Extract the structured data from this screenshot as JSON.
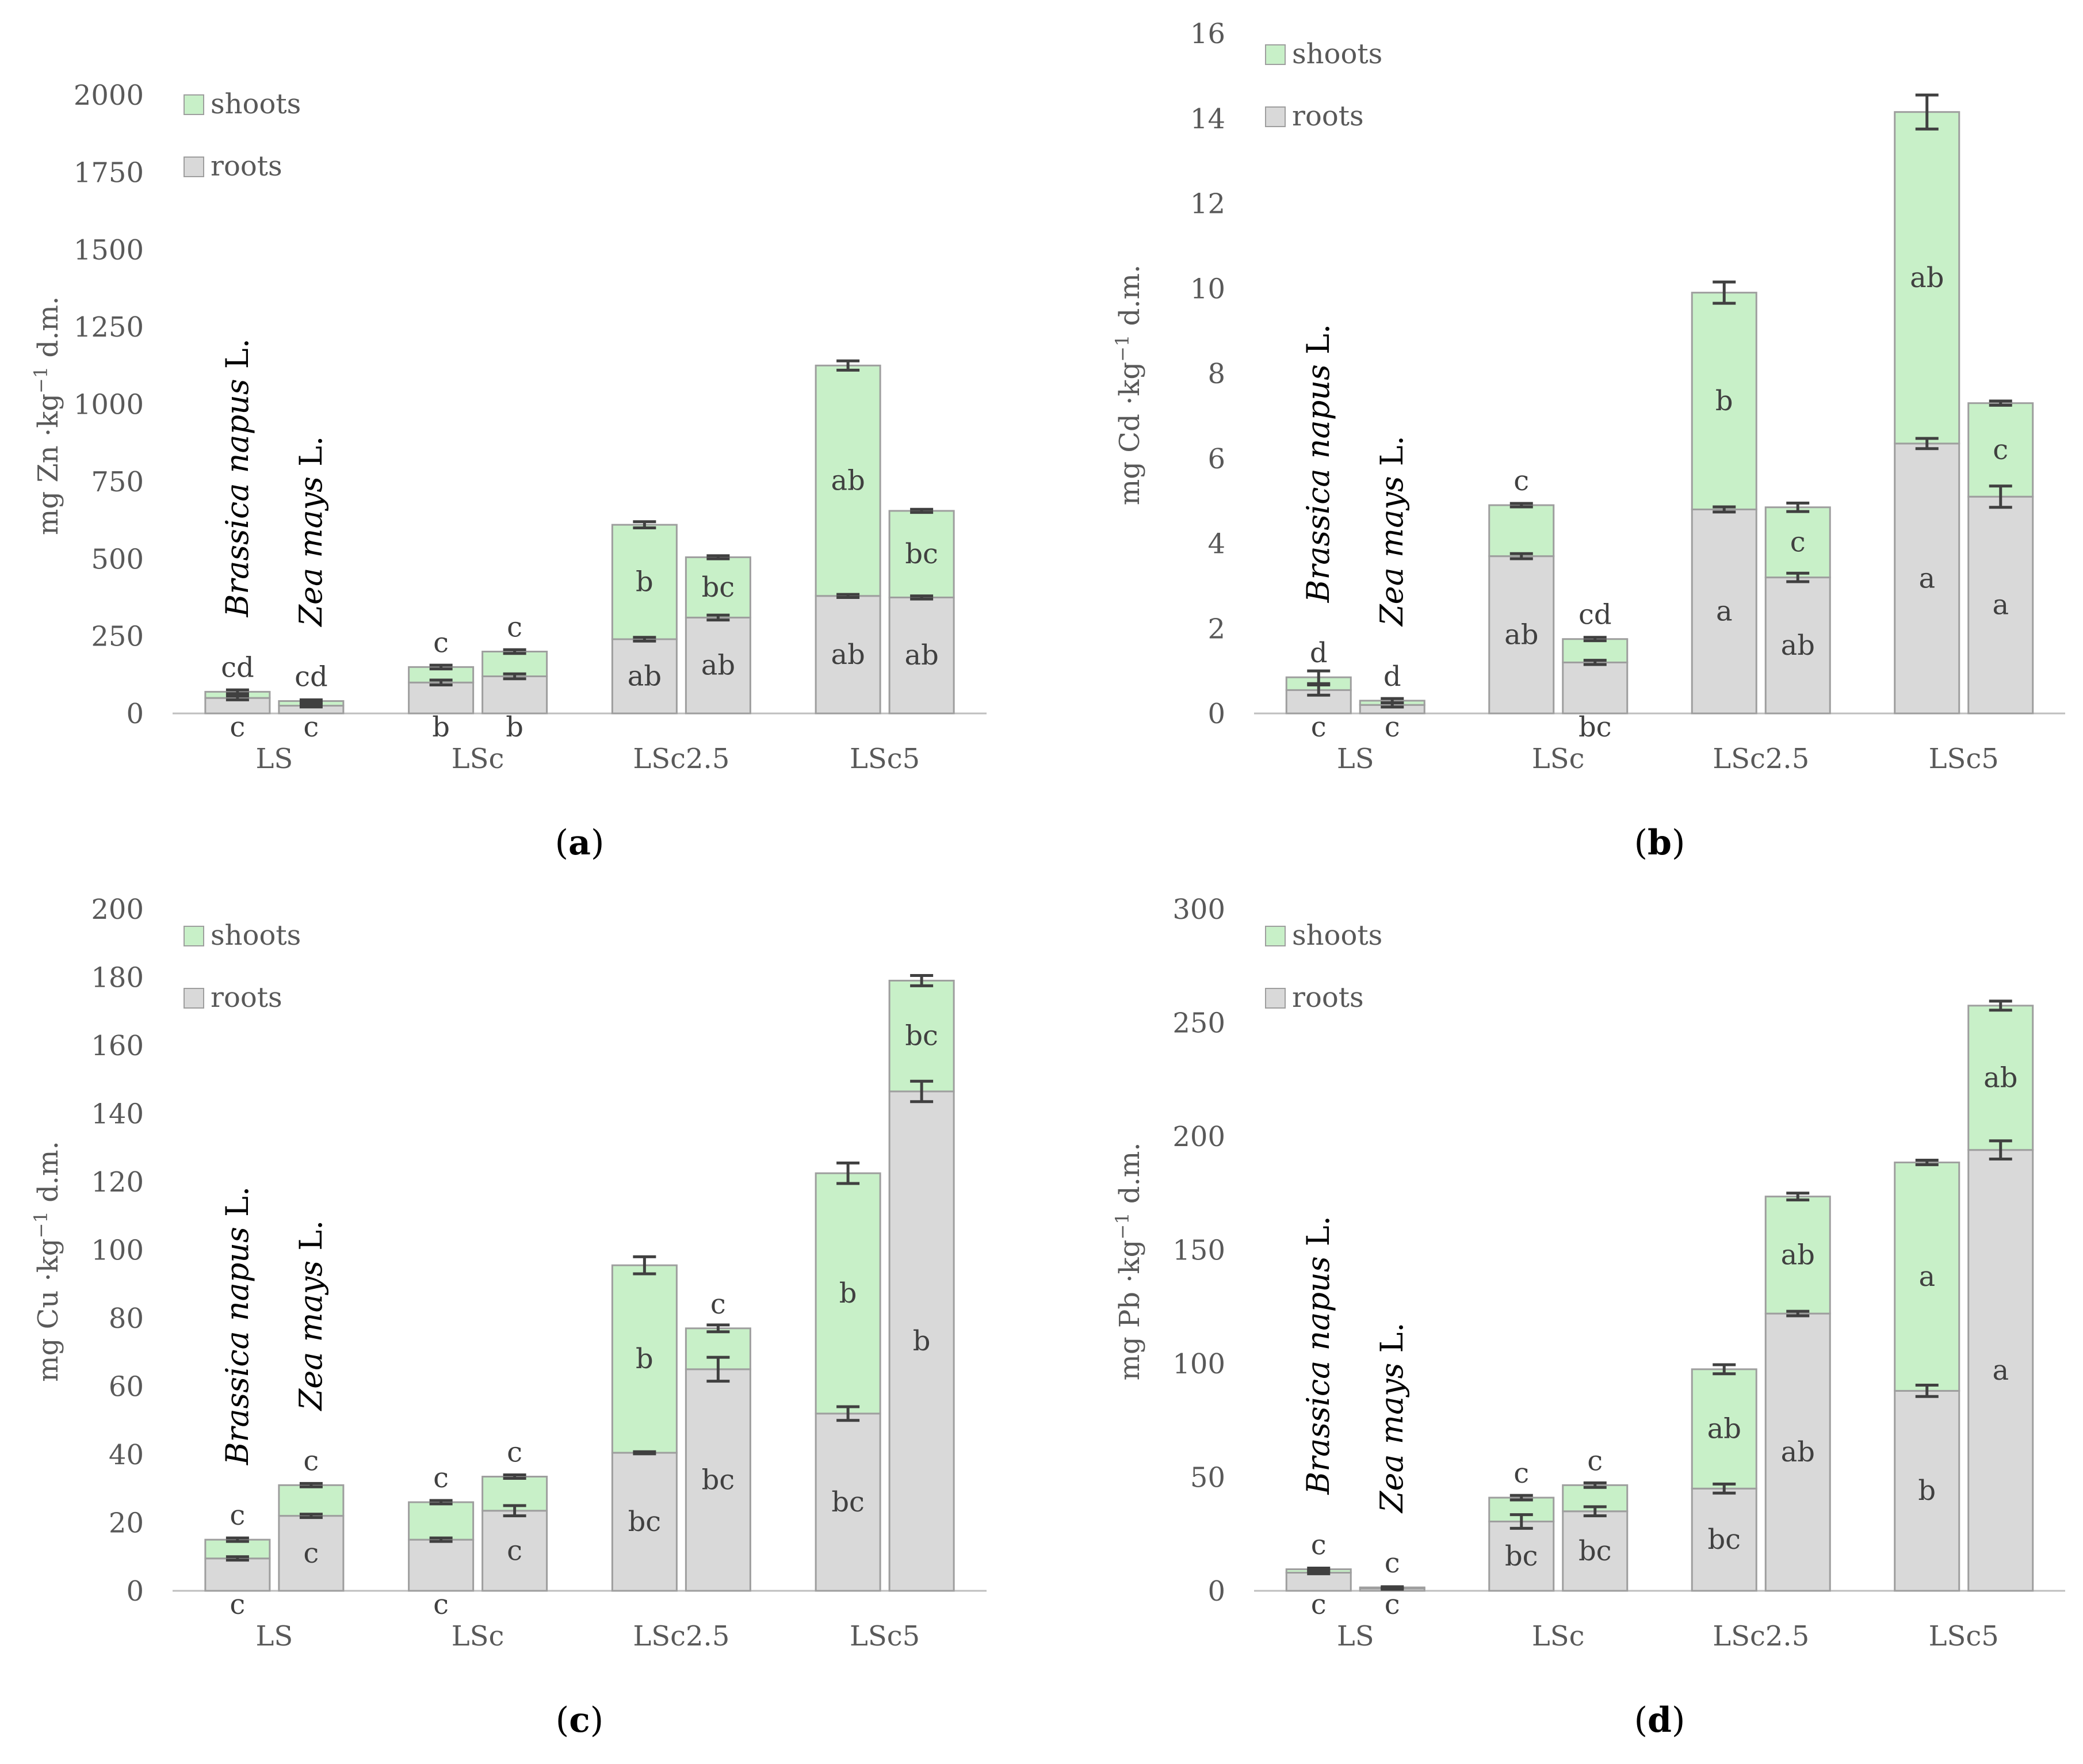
{
  "colors": {
    "roots": "#d9d9d9",
    "shoots": "#c8f0c8",
    "bar_edge": "#9e9e9e",
    "error_bar": "#404040",
    "axis_text": "#595959",
    "axis_line": "#bfbfbf"
  },
  "species": [
    "Brassica napus",
    "Zea mays"
  ],
  "species_suffix": "L.",
  "chart_data": [
    {
      "type": "bar",
      "stacked": true,
      "panel_label": "a",
      "ylabel_prefix": "mg Zn ·kg",
      "ylabel_sup": "−1",
      "ylabel_suffix": " d.m.",
      "ylim": [
        0,
        2000
      ],
      "yticks": [
        "0",
        "250",
        "500",
        "750",
        "1000",
        "1250",
        "1500",
        "1750",
        "2000"
      ],
      "categories": [
        "LS",
        "LSc",
        "LSc2.5",
        "LSc5"
      ],
      "legend": [
        "shoots",
        "roots"
      ],
      "series": [
        {
          "name": "roots",
          "values": [
            [
              50,
              25
            ],
            [
              100,
              120
            ],
            [
              240,
              310
            ],
            [
              380,
              375
            ]
          ],
          "errors": [
            [
              6,
              4
            ],
            [
              8,
              8
            ],
            [
              6,
              8
            ],
            [
              5,
              5
            ]
          ],
          "letters": [
            [
              "c",
              "c"
            ],
            [
              "b",
              "b"
            ],
            [
              "ab",
              "ab"
            ],
            [
              "ab",
              "ab"
            ]
          ]
        },
        {
          "name": "shoots",
          "values": [
            [
              20,
              15
            ],
            [
              50,
              80
            ],
            [
              370,
              195
            ],
            [
              745,
              280
            ]
          ],
          "errors": [
            [
              6,
              4
            ],
            [
              6,
              6
            ],
            [
              10,
              5
            ],
            [
              15,
              5
            ]
          ],
          "letters": [
            [
              "cd",
              "cd"
            ],
            [
              "c",
              "c"
            ],
            [
              "b",
              "bc"
            ],
            [
              "ab",
              "bc"
            ]
          ]
        }
      ]
    },
    {
      "type": "bar",
      "stacked": true,
      "panel_label": "b",
      "ylabel_prefix": "mg Cd ·kg",
      "ylabel_sup": "−1",
      "ylabel_suffix": " d.m.",
      "ylim": [
        0,
        16
      ],
      "yticks": [
        "0",
        "2",
        "4",
        "6",
        "8",
        "10",
        "12",
        "14",
        "16"
      ],
      "categories": [
        "LS",
        "LSc",
        "LSc2.5",
        "LSc5"
      ],
      "legend": [
        "shoots",
        "roots"
      ],
      "series": [
        {
          "name": "roots",
          "values": [
            [
              0.55,
              0.2
            ],
            [
              3.7,
              1.2
            ],
            [
              4.8,
              3.2
            ],
            [
              6.35,
              5.1
            ]
          ],
          "errors": [
            [
              0.12,
              0.05
            ],
            [
              0.06,
              0.05
            ],
            [
              0.06,
              0.1
            ],
            [
              0.12,
              0.25
            ]
          ],
          "letters": [
            [
              "c",
              "c"
            ],
            [
              "ab",
              "bc"
            ],
            [
              "a",
              "ab"
            ],
            [
              "a",
              "a"
            ]
          ]
        },
        {
          "name": "shoots",
          "values": [
            [
              0.3,
              0.1
            ],
            [
              1.2,
              0.55
            ],
            [
              5.1,
              1.65
            ],
            [
              7.8,
              2.2
            ]
          ],
          "errors": [
            [
              0.15,
              0.05
            ],
            [
              0.04,
              0.04
            ],
            [
              0.25,
              0.1
            ],
            [
              0.4,
              0.05
            ]
          ],
          "letters": [
            [
              "d",
              "d"
            ],
            [
              "c",
              "cd"
            ],
            [
              "b",
              "c"
            ],
            [
              "ab",
              "c"
            ]
          ]
        }
      ]
    },
    {
      "type": "bar",
      "stacked": true,
      "panel_label": "c",
      "ylabel_prefix": "mg Cu ·kg",
      "ylabel_sup": "−1",
      "ylabel_suffix": " d.m.",
      "ylim": [
        0,
        200
      ],
      "yticks": [
        "0",
        "20",
        "40",
        "60",
        "80",
        "100",
        "120",
        "140",
        "160",
        "180",
        "200"
      ],
      "categories": [
        "LS",
        "LSc",
        "LSc2.5",
        "LSc5"
      ],
      "legend": [
        "shoots",
        "roots"
      ],
      "series": [
        {
          "name": "roots",
          "values": [
            [
              9.5,
              22
            ],
            [
              15,
              23.5
            ],
            [
              40.5,
              65
            ],
            [
              52,
              146.5
            ]
          ],
          "errors": [
            [
              0.5,
              0.5
            ],
            [
              0.5,
              1.5
            ],
            [
              0.3,
              3.5
            ],
            [
              2,
              3
            ]
          ],
          "letters": [
            [
              "c",
              "c"
            ],
            [
              "c",
              "c"
            ],
            [
              "bc",
              "bc"
            ],
            [
              "bc",
              "b"
            ]
          ]
        },
        {
          "name": "shoots",
          "values": [
            [
              5.5,
              9
            ],
            [
              11,
              10
            ],
            [
              55,
              12
            ],
            [
              70.5,
              32.5
            ]
          ],
          "errors": [
            [
              0.5,
              0.5
            ],
            [
              0.5,
              0.5
            ],
            [
              2.5,
              1
            ],
            [
              3,
              1.5
            ]
          ],
          "letters": [
            [
              "c",
              "c"
            ],
            [
              "c",
              "c"
            ],
            [
              "b",
              "c"
            ],
            [
              "b",
              "bc"
            ]
          ]
        }
      ]
    },
    {
      "type": "bar",
      "stacked": true,
      "panel_label": "d",
      "ylabel_prefix": "mg Pb ·kg",
      "ylabel_sup": "−1",
      "ylabel_suffix": " d.m.",
      "ylim": [
        0,
        300
      ],
      "yticks": [
        "0",
        "50",
        "100",
        "150",
        "200",
        "250",
        "300"
      ],
      "categories": [
        "LS",
        "LSc",
        "LSc2.5",
        "LSc5"
      ],
      "legend": [
        "shoots",
        "roots"
      ],
      "series": [
        {
          "name": "roots",
          "values": [
            [
              8,
              1
            ],
            [
              30.5,
              35
            ],
            [
              45,
              122
            ],
            [
              88,
              194
            ]
          ],
          "errors": [
            [
              0.5,
              0.3
            ],
            [
              3,
              2
            ],
            [
              2,
              1
            ],
            [
              2.5,
              4
            ]
          ],
          "letters": [
            [
              "c",
              "c"
            ],
            [
              "bc",
              "bc"
            ],
            [
              "bc",
              "ab"
            ],
            [
              "b",
              "a"
            ]
          ]
        },
        {
          "name": "shoots",
          "values": [
            [
              1.5,
              0.5
            ],
            [
              10.5,
              11.5
            ],
            [
              52.5,
              51.5
            ],
            [
              100.5,
              63.5
            ]
          ],
          "errors": [
            [
              0.5,
              0.3
            ],
            [
              1,
              1
            ],
            [
              2,
              1.5
            ],
            [
              1,
              2
            ]
          ],
          "letters": [
            [
              "c",
              "c"
            ],
            [
              "c",
              "c"
            ],
            [
              "ab",
              "ab"
            ],
            [
              "a",
              "ab"
            ]
          ]
        }
      ]
    }
  ]
}
